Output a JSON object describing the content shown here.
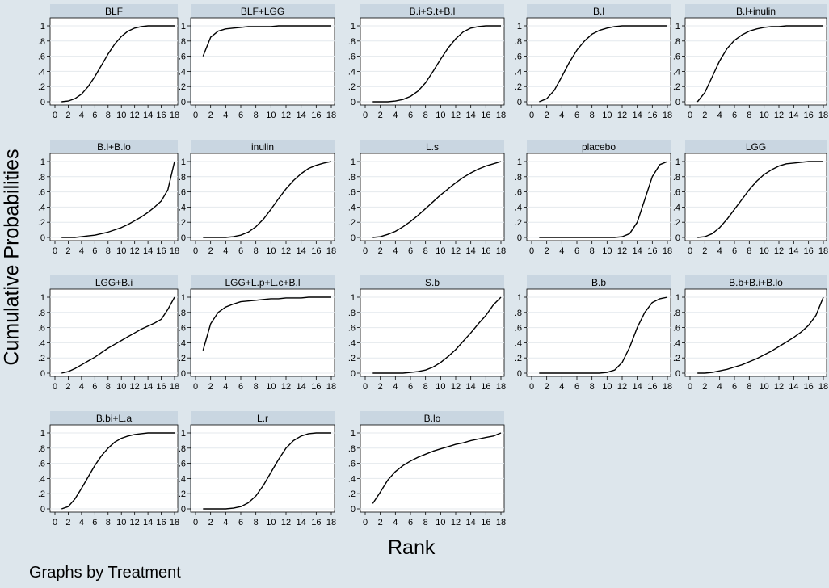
{
  "chart_data": {
    "type": "line",
    "layout": "small-multiples",
    "ylabel": "Cumulative Probabilities",
    "xlabel": "Rank",
    "note": "Graphs by Treatment",
    "xlim": [
      0,
      18
    ],
    "ylim": [
      0,
      1
    ],
    "x_ticks": [
      0,
      2,
      4,
      6,
      8,
      10,
      12,
      14,
      16,
      18
    ],
    "y_ticks": [
      0,
      0.2,
      0.4,
      0.6,
      0.8,
      1
    ],
    "y_tick_labels": [
      "0",
      ".2",
      ".4",
      ".6",
      ".8",
      "1"
    ],
    "grid": "horizontal",
    "x": [
      1,
      2,
      3,
      4,
      5,
      6,
      7,
      8,
      9,
      10,
      11,
      12,
      13,
      14,
      15,
      16,
      17,
      18
    ],
    "panels": [
      {
        "title": "BLF",
        "values": [
          0.0,
          0.01,
          0.04,
          0.1,
          0.2,
          0.33,
          0.48,
          0.63,
          0.76,
          0.86,
          0.93,
          0.97,
          0.99,
          1.0,
          1.0,
          1.0,
          1.0,
          1.0
        ]
      },
      {
        "title": "BLF+LGG",
        "values": [
          0.6,
          0.85,
          0.93,
          0.96,
          0.97,
          0.98,
          0.99,
          0.99,
          0.99,
          0.99,
          1.0,
          1.0,
          1.0,
          1.0,
          1.0,
          1.0,
          1.0,
          1.0
        ]
      },
      {
        "title": "B.i+S.t+B.l",
        "values": [
          0.0,
          0.0,
          0.0,
          0.01,
          0.03,
          0.07,
          0.14,
          0.25,
          0.4,
          0.56,
          0.71,
          0.83,
          0.92,
          0.97,
          0.99,
          1.0,
          1.0,
          1.0
        ]
      },
      {
        "title": "B.l",
        "values": [
          0.0,
          0.04,
          0.15,
          0.33,
          0.52,
          0.68,
          0.8,
          0.89,
          0.94,
          0.97,
          0.99,
          1.0,
          1.0,
          1.0,
          1.0,
          1.0,
          1.0,
          1.0
        ]
      },
      {
        "title": "B.l+inulin",
        "values": [
          0.0,
          0.12,
          0.33,
          0.54,
          0.7,
          0.81,
          0.88,
          0.93,
          0.96,
          0.98,
          0.99,
          0.99,
          1.0,
          1.0,
          1.0,
          1.0,
          1.0,
          1.0
        ]
      },
      {
        "title": "B.l+B.lo",
        "values": [
          0.0,
          0.0,
          0.0,
          0.01,
          0.02,
          0.03,
          0.05,
          0.07,
          0.1,
          0.13,
          0.17,
          0.22,
          0.27,
          0.33,
          0.4,
          0.48,
          0.63,
          1.0
        ]
      },
      {
        "title": "inulin",
        "values": [
          0.0,
          0.0,
          0.0,
          0.0,
          0.01,
          0.03,
          0.07,
          0.14,
          0.24,
          0.37,
          0.51,
          0.64,
          0.75,
          0.84,
          0.91,
          0.95,
          0.98,
          1.0
        ]
      },
      {
        "title": "L.s",
        "values": [
          0.0,
          0.01,
          0.04,
          0.08,
          0.14,
          0.21,
          0.29,
          0.38,
          0.47,
          0.56,
          0.64,
          0.72,
          0.79,
          0.85,
          0.9,
          0.94,
          0.97,
          1.0
        ]
      },
      {
        "title": "placebo",
        "values": [
          0.0,
          0.0,
          0.0,
          0.0,
          0.0,
          0.0,
          0.0,
          0.0,
          0.0,
          0.0,
          0.0,
          0.01,
          0.05,
          0.2,
          0.5,
          0.8,
          0.96,
          1.0
        ]
      },
      {
        "title": "LGG",
        "values": [
          0.0,
          0.01,
          0.05,
          0.13,
          0.24,
          0.37,
          0.5,
          0.63,
          0.74,
          0.83,
          0.89,
          0.94,
          0.97,
          0.98,
          0.99,
          1.0,
          1.0,
          1.0
        ]
      },
      {
        "title": "LGG+B.i",
        "values": [
          0.0,
          0.02,
          0.06,
          0.11,
          0.16,
          0.21,
          0.27,
          0.33,
          0.38,
          0.43,
          0.48,
          0.53,
          0.58,
          0.62,
          0.66,
          0.71,
          0.84,
          1.0
        ]
      },
      {
        "title": "LGG+L.p+L.c+B.l",
        "values": [
          0.3,
          0.65,
          0.8,
          0.87,
          0.91,
          0.94,
          0.95,
          0.96,
          0.97,
          0.98,
          0.98,
          0.99,
          0.99,
          0.99,
          1.0,
          1.0,
          1.0,
          1.0
        ]
      },
      {
        "title": "S.b",
        "values": [
          0.0,
          0.0,
          0.0,
          0.0,
          0.0,
          0.01,
          0.02,
          0.04,
          0.08,
          0.14,
          0.22,
          0.31,
          0.42,
          0.53,
          0.65,
          0.76,
          0.9,
          1.0
        ]
      },
      {
        "title": "B.b",
        "values": [
          0.0,
          0.0,
          0.0,
          0.0,
          0.0,
          0.0,
          0.0,
          0.0,
          0.0,
          0.01,
          0.04,
          0.14,
          0.34,
          0.6,
          0.8,
          0.93,
          0.98,
          1.0
        ]
      },
      {
        "title": "B.b+B.i+B.lo",
        "values": [
          0.0,
          0.0,
          0.01,
          0.03,
          0.05,
          0.08,
          0.11,
          0.15,
          0.19,
          0.24,
          0.29,
          0.35,
          0.41,
          0.47,
          0.54,
          0.63,
          0.76,
          1.0
        ]
      },
      {
        "title": "B.bi+L.a",
        "values": [
          0.0,
          0.03,
          0.13,
          0.27,
          0.42,
          0.57,
          0.7,
          0.8,
          0.88,
          0.93,
          0.96,
          0.98,
          0.99,
          1.0,
          1.0,
          1.0,
          1.0,
          1.0
        ]
      },
      {
        "title": "L.r",
        "values": [
          0.0,
          0.0,
          0.0,
          0.0,
          0.01,
          0.03,
          0.08,
          0.17,
          0.31,
          0.48,
          0.65,
          0.8,
          0.9,
          0.96,
          0.99,
          1.0,
          1.0,
          1.0
        ]
      },
      {
        "title": "B.lo",
        "values": [
          0.07,
          0.22,
          0.38,
          0.49,
          0.57,
          0.63,
          0.68,
          0.72,
          0.76,
          0.79,
          0.82,
          0.85,
          0.87,
          0.9,
          0.92,
          0.94,
          0.96,
          1.0
        ]
      }
    ]
  }
}
